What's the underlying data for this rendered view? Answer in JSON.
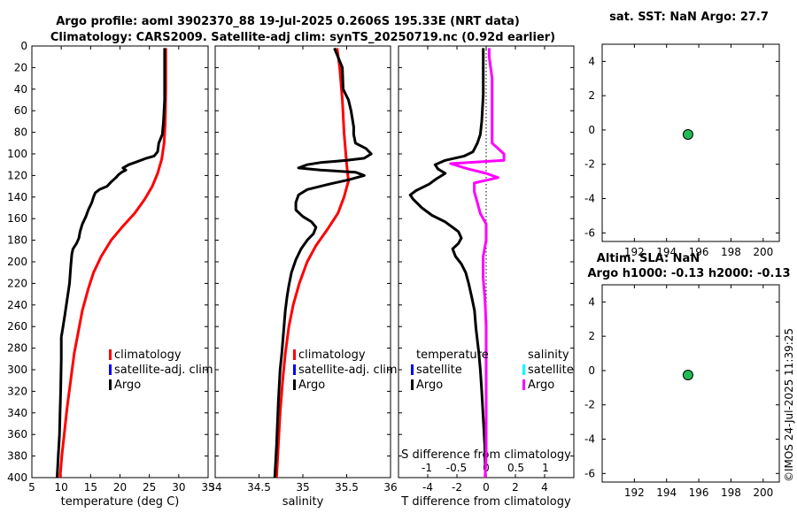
{
  "title": {
    "line1": "Argo profile: aoml 3902370_88 19-Jul-2025 0.2606S 195.33E (NRT data)",
    "line2": "Climatology: CARS2009. Satellite-adj clim: synTS_20250719.nc (0.92d earlier)"
  },
  "timestamp": "©IMOS 24-Jul-2025 11:39:25",
  "colors": {
    "climatology": "#ff0000",
    "satellite": "#0000ff",
    "argo": "#000000",
    "argo_salinity": "#ff00ff",
    "satellite_salinity": "#00ffff",
    "marker_fill": "#22bb55"
  },
  "legend": {
    "climatology": "climatology",
    "satellite": "satellite-adj. clim",
    "argo": "Argo",
    "diff_temperature": "temperature",
    "diff_salinity": "salinity",
    "diff_satellite": "satellite",
    "diff_argo": "Argo"
  },
  "chart_data": [
    {
      "type": "line",
      "name": "temperature",
      "xlabel": "temperature (deg C)",
      "xlim": [
        5,
        35
      ],
      "ylim": [
        400,
        0
      ],
      "xticks": [
        5,
        10,
        15,
        20,
        25,
        30,
        35
      ],
      "yticks": [
        0,
        20,
        40,
        60,
        80,
        100,
        120,
        140,
        160,
        180,
        200,
        220,
        240,
        260,
        280,
        300,
        320,
        340,
        360,
        380,
        400
      ],
      "series": [
        {
          "name": "climatology",
          "points": [
            [
              27.8,
              2
            ],
            [
              27.8,
              40
            ],
            [
              27.7,
              70
            ],
            [
              27.5,
              90
            ],
            [
              27.1,
              105
            ],
            [
              26.4,
              118
            ],
            [
              25.5,
              130
            ],
            [
              24.2,
              142
            ],
            [
              22.5,
              155
            ],
            [
              20.5,
              167
            ],
            [
              18.5,
              180
            ],
            [
              16.8,
              195
            ],
            [
              15.5,
              210
            ],
            [
              14.6,
              225
            ],
            [
              13.6,
              245
            ],
            [
              12.9,
              265
            ],
            [
              12.2,
              285
            ],
            [
              11.6,
              310
            ],
            [
              11.0,
              335
            ],
            [
              10.5,
              360
            ],
            [
              10.1,
              380
            ],
            [
              9.8,
              400
            ]
          ]
        },
        {
          "name": "argo",
          "points": [
            [
              27.6,
              2
            ],
            [
              27.6,
              50
            ],
            [
              27.4,
              70
            ],
            [
              27.2,
              82
            ],
            [
              26.6,
              90
            ],
            [
              26.4,
              98
            ],
            [
              25.8,
              102
            ],
            [
              24.5,
              104
            ],
            [
              22.5,
              108
            ],
            [
              21.5,
              110
            ],
            [
              20.5,
              113
            ],
            [
              21.0,
              115
            ],
            [
              20.3,
              117
            ],
            [
              19.8,
              119
            ],
            [
              19.3,
              122
            ],
            [
              18.5,
              126
            ],
            [
              17.8,
              130
            ],
            [
              16.5,
              133
            ],
            [
              15.8,
              136
            ],
            [
              15.5,
              140
            ],
            [
              15.2,
              145
            ],
            [
              14.6,
              152
            ],
            [
              14.2,
              158
            ],
            [
              13.6,
              165
            ],
            [
              13.2,
              172
            ],
            [
              13.0,
              178
            ],
            [
              12.6,
              183
            ],
            [
              12.0,
              188
            ],
            [
              11.8,
              193
            ],
            [
              11.6,
              205
            ],
            [
              11.4,
              220
            ],
            [
              11.0,
              235
            ],
            [
              10.6,
              250
            ],
            [
              10.3,
              260
            ],
            [
              10.0,
              270
            ],
            [
              10.0,
              290
            ],
            [
              9.9,
              320
            ],
            [
              9.8,
              340
            ],
            [
              9.7,
              360
            ],
            [
              9.5,
              380
            ],
            [
              9.3,
              400
            ]
          ]
        }
      ]
    },
    {
      "type": "line",
      "name": "salinity",
      "xlabel": "salinity",
      "xlim": [
        34,
        36
      ],
      "ylim": [
        400,
        0
      ],
      "xticks": [
        34,
        34.5,
        35,
        35.5,
        36
      ],
      "xticklabels": [
        "34",
        "34.5",
        "35",
        "35.5",
        "36"
      ],
      "series": [
        {
          "name": "climatology",
          "points": [
            [
              35.39,
              2
            ],
            [
              35.42,
              20
            ],
            [
              35.45,
              50
            ],
            [
              35.47,
              80
            ],
            [
              35.5,
              110
            ],
            [
              35.52,
              125
            ],
            [
              35.47,
              140
            ],
            [
              35.4,
              155
            ],
            [
              35.28,
              170
            ],
            [
              35.15,
              185
            ],
            [
              35.05,
              200
            ],
            [
              34.96,
              220
            ],
            [
              34.89,
              240
            ],
            [
              34.84,
              260
            ],
            [
              34.8,
              285
            ],
            [
              34.77,
              310
            ],
            [
              34.74,
              340
            ],
            [
              34.72,
              370
            ],
            [
              34.7,
              400
            ]
          ]
        },
        {
          "name": "argo",
          "points": [
            [
              35.36,
              2
            ],
            [
              35.4,
              10
            ],
            [
              35.45,
              20
            ],
            [
              35.46,
              40
            ],
            [
              35.52,
              50
            ],
            [
              35.55,
              60
            ],
            [
              35.58,
              75
            ],
            [
              35.58,
              82
            ],
            [
              35.6,
              90
            ],
            [
              35.72,
              95
            ],
            [
              35.78,
              100
            ],
            [
              35.7,
              104
            ],
            [
              35.5,
              106
            ],
            [
              35.2,
              108
            ],
            [
              35.05,
              110
            ],
            [
              34.95,
              113
            ],
            [
              35.2,
              115
            ],
            [
              35.6,
              117
            ],
            [
              35.7,
              120
            ],
            [
              35.52,
              124
            ],
            [
              35.3,
              128
            ],
            [
              35.05,
              133
            ],
            [
              34.95,
              138
            ],
            [
              34.92,
              145
            ],
            [
              34.92,
              152
            ],
            [
              35.0,
              158
            ],
            [
              35.1,
              163
            ],
            [
              35.15,
              168
            ],
            [
              35.12,
              174
            ],
            [
              35.05,
              180
            ],
            [
              34.98,
              188
            ],
            [
              34.92,
              198
            ],
            [
              34.87,
              210
            ],
            [
              34.84,
              222
            ],
            [
              34.82,
              232
            ],
            [
              34.8,
              245
            ],
            [
              34.78,
              265
            ],
            [
              34.76,
              285
            ],
            [
              34.74,
              300
            ],
            [
              34.72,
              330
            ],
            [
              34.7,
              370
            ],
            [
              34.68,
              400
            ]
          ]
        }
      ]
    },
    {
      "type": "line",
      "name": "difference",
      "xlabel": "T difference from climatology",
      "xlim": [
        -6,
        6
      ],
      "ylim": [
        400,
        0
      ],
      "xticks": [
        -4,
        -2,
        0,
        2,
        4
      ],
      "xticklabels": [
        "-4",
        "-2",
        "0",
        "2",
        "4"
      ],
      "top_xlabel": "S difference from climatology",
      "top_xticks": [
        -1,
        -0.5,
        0,
        0.5,
        1
      ],
      "top_xticklabels": [
        "-1",
        "-0.5",
        "0",
        "0.5",
        "1"
      ],
      "series": [
        {
          "name": "temperature Argo",
          "points": [
            [
              -0.2,
              2
            ],
            [
              -0.2,
              45
            ],
            [
              -0.3,
              70
            ],
            [
              -0.4,
              82
            ],
            [
              -0.6,
              90
            ],
            [
              -0.9,
              98
            ],
            [
              -1.5,
              102
            ],
            [
              -2.8,
              106
            ],
            [
              -3.5,
              110
            ],
            [
              -3.3,
              114
            ],
            [
              -2.8,
              118
            ],
            [
              -3.4,
              123
            ],
            [
              -3.9,
              128
            ],
            [
              -4.8,
              134
            ],
            [
              -5.2,
              138
            ],
            [
              -5.0,
              142
            ],
            [
              -4.4,
              150
            ],
            [
              -3.7,
              157
            ],
            [
              -2.8,
              163
            ],
            [
              -2.3,
              168
            ],
            [
              -1.9,
              172
            ],
            [
              -1.7,
              178
            ],
            [
              -1.9,
              183
            ],
            [
              -2.3,
              188
            ],
            [
              -2.1,
              195
            ],
            [
              -1.7,
              202
            ],
            [
              -1.4,
              210
            ],
            [
              -1.2,
              220
            ],
            [
              -1.0,
              232
            ],
            [
              -0.8,
              245
            ],
            [
              -0.7,
              262
            ],
            [
              -0.5,
              285
            ],
            [
              -0.4,
              300
            ],
            [
              -0.3,
              320
            ],
            [
              -0.2,
              345
            ],
            [
              -0.1,
              370
            ],
            [
              -0.05,
              400
            ]
          ]
        },
        {
          "name": "salinity Argo",
          "points": [
            [
              0.05,
              2
            ],
            [
              0.05,
              10
            ],
            [
              0.1,
              30
            ],
            [
              0.1,
              50
            ],
            [
              0.1,
              70
            ],
            [
              0.1,
              90
            ],
            [
              0.3,
              100
            ],
            [
              0.3,
              106
            ],
            [
              -0.6,
              109
            ],
            [
              -0.3,
              114
            ],
            [
              0.0,
              118
            ],
            [
              0.2,
              122
            ],
            [
              -0.2,
              127
            ],
            [
              -0.2,
              135
            ],
            [
              -0.15,
              145
            ],
            [
              -0.1,
              155
            ],
            [
              0.0,
              165
            ],
            [
              0.0,
              180
            ],
            [
              -0.05,
              195
            ],
            [
              -0.05,
              215
            ],
            [
              -0.02,
              235
            ],
            [
              0.0,
              260
            ],
            [
              0.0,
              285
            ],
            [
              0.0,
              310
            ],
            [
              0.0,
              345
            ],
            [
              0.0,
              380
            ],
            [
              -0.02,
              400
            ]
          ]
        }
      ]
    },
    {
      "type": "scatter",
      "name": "sat-sst",
      "title": "sat. SST: NaN Argo: 27.7",
      "xlim": [
        190,
        201
      ],
      "ylim": [
        -6.5,
        5
      ],
      "xticks": [
        192,
        194,
        196,
        198,
        200
      ],
      "yticks": [
        -6,
        -4,
        -2,
        0,
        2,
        4
      ],
      "points": [
        [
          195.33,
          -0.26
        ]
      ]
    },
    {
      "type": "scatter",
      "name": "altim-sla",
      "title": "Altim. SLA: NaN",
      "subtitle": "Argo h1000: -0.13 h2000: -0.13",
      "xlim": [
        190,
        201
      ],
      "ylim": [
        -6.5,
        5
      ],
      "xticks": [
        192,
        194,
        196,
        198,
        200
      ],
      "yticks": [
        -6,
        -4,
        -2,
        0,
        2,
        4
      ],
      "points": [
        [
          195.33,
          -0.26
        ]
      ]
    }
  ]
}
